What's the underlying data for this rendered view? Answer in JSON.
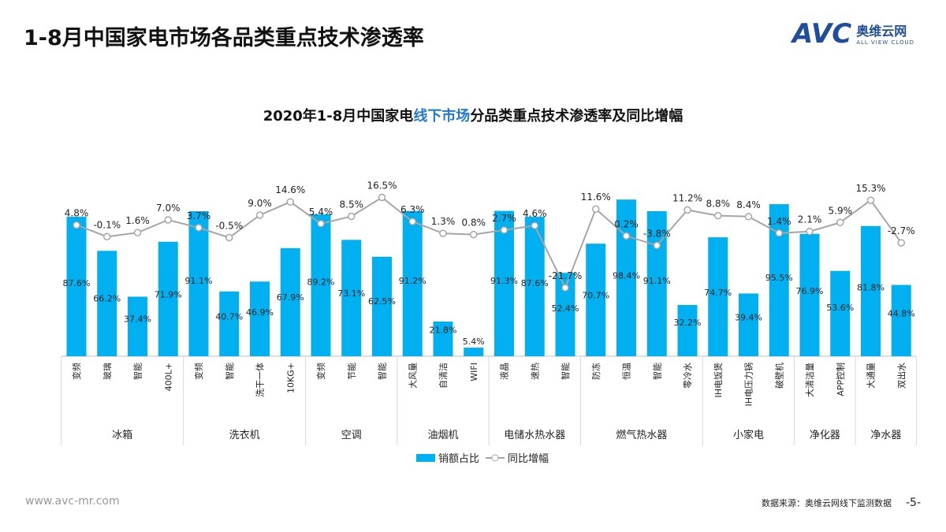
{
  "page": {
    "title": "1-8月中国家电市场各品类重点技术渗透率",
    "website": "www.avc-mr.com",
    "source": "数据来源：奥维云网线下监测数据",
    "page_number": "-5-"
  },
  "logo": {
    "mark": "AVC",
    "cn": "奥维云网",
    "en": "ALL VIEW CLOUD"
  },
  "chart_data": {
    "type": "bar+line",
    "title_parts": [
      "2020年1-8月中国家电",
      "线下市场",
      "分品类重点技术渗透率及同比增幅"
    ],
    "groups": [
      {
        "name": "冰箱",
        "categories": [
          "变频",
          "玻璃",
          "智能",
          "400L+"
        ]
      },
      {
        "name": "洗衣机",
        "categories": [
          "变频",
          "智能",
          "洗干一体",
          "10KG+"
        ]
      },
      {
        "name": "空调",
        "categories": [
          "变频",
          "节能",
          "智能"
        ]
      },
      {
        "name": "油烟机",
        "categories": [
          "大风量",
          "自清洁",
          "WIFI"
        ]
      },
      {
        "name": "电储水热水器",
        "categories": [
          "液晶",
          "速热",
          "智能"
        ]
      },
      {
        "name": "燃气热水器",
        "categories": [
          "防冻",
          "恒温",
          "智能",
          "零冷水"
        ]
      },
      {
        "name": "小家电",
        "categories": [
          "IH电饭煲",
          "IH电压力锅",
          "破壁机"
        ]
      },
      {
        "name": "净化器",
        "categories": [
          "大清洁量",
          "APP控制"
        ]
      },
      {
        "name": "净水器",
        "categories": [
          "大通量",
          "双出水"
        ]
      }
    ],
    "series": [
      {
        "name": "销额占比",
        "type": "bar",
        "color": "#00b0f0",
        "unit": "%",
        "values": [
          87.6,
          66.2,
          37.4,
          71.9,
          91.1,
          40.7,
          46.9,
          67.9,
          89.2,
          73.1,
          62.5,
          91.2,
          21.8,
          5.4,
          91.3,
          87.6,
          52.4,
          70.7,
          98.4,
          91.1,
          32.2,
          74.7,
          39.4,
          95.5,
          76.9,
          53.6,
          81.8,
          44.8
        ]
      },
      {
        "name": "同比增幅",
        "type": "line",
        "color": "#a6a6a6",
        "unit": "%",
        "values": [
          4.8,
          -0.1,
          1.6,
          7.0,
          3.7,
          -0.5,
          9.0,
          14.6,
          5.4,
          8.5,
          16.5,
          6.3,
          1.3,
          0.8,
          2.7,
          4.6,
          -21.7,
          11.6,
          0.2,
          -3.8,
          11.2,
          8.8,
          8.4,
          1.4,
          2.1,
          5.9,
          15.3,
          -2.7
        ]
      }
    ],
    "legend": "bottom"
  }
}
